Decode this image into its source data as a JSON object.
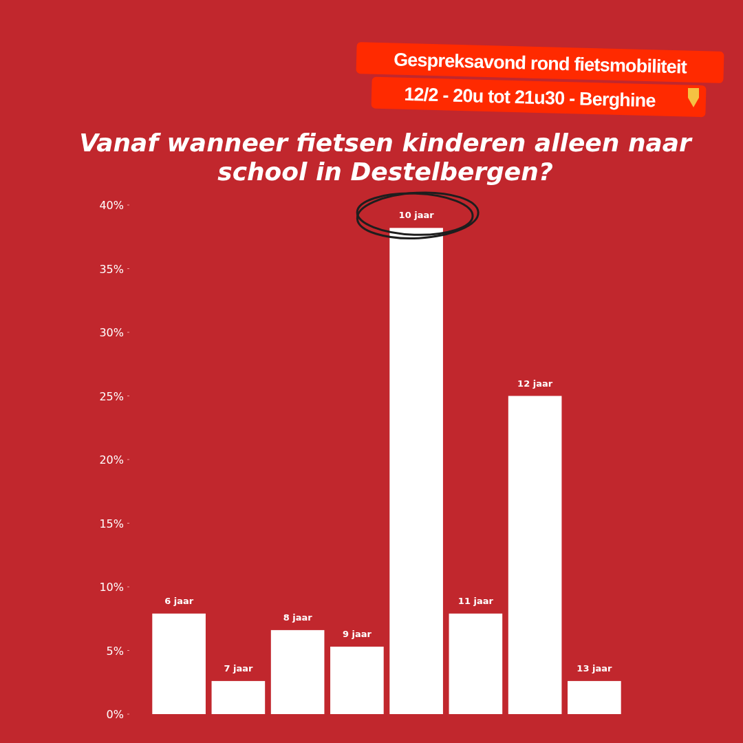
{
  "chart_data": {
    "type": "bar",
    "title": "Vanaf wanneer fietsen kinderen alleen naar school in Destelbergen?",
    "categories": [
      "6 jaar",
      "7 jaar",
      "8 jaar",
      "9 jaar",
      "10 jaar",
      "11 jaar",
      "12 jaar",
      "13 jaar"
    ],
    "values": [
      7.9,
      2.6,
      6.6,
      5.3,
      38.2,
      7.9,
      25.0,
      2.6
    ],
    "color": "#ffffff",
    "ylim": [
      0,
      40
    ],
    "yticks": [
      {
        "value": 0,
        "label": "0%"
      },
      {
        "value": 5,
        "label": "5%"
      },
      {
        "value": 10,
        "label": "10%"
      },
      {
        "value": 15,
        "label": "15%"
      },
      {
        "value": 20,
        "label": "20%"
      },
      {
        "value": 25,
        "label": "25%"
      },
      {
        "value": 30,
        "label": "30%"
      },
      {
        "value": 35,
        "label": "35%"
      },
      {
        "value": 40,
        "label": "40%"
      }
    ],
    "grid": false,
    "annotations": [
      "Gespreksavond rond fietsmobiliteit",
      "12/2 - 20u tot 21u30 - Berghine"
    ]
  }
}
